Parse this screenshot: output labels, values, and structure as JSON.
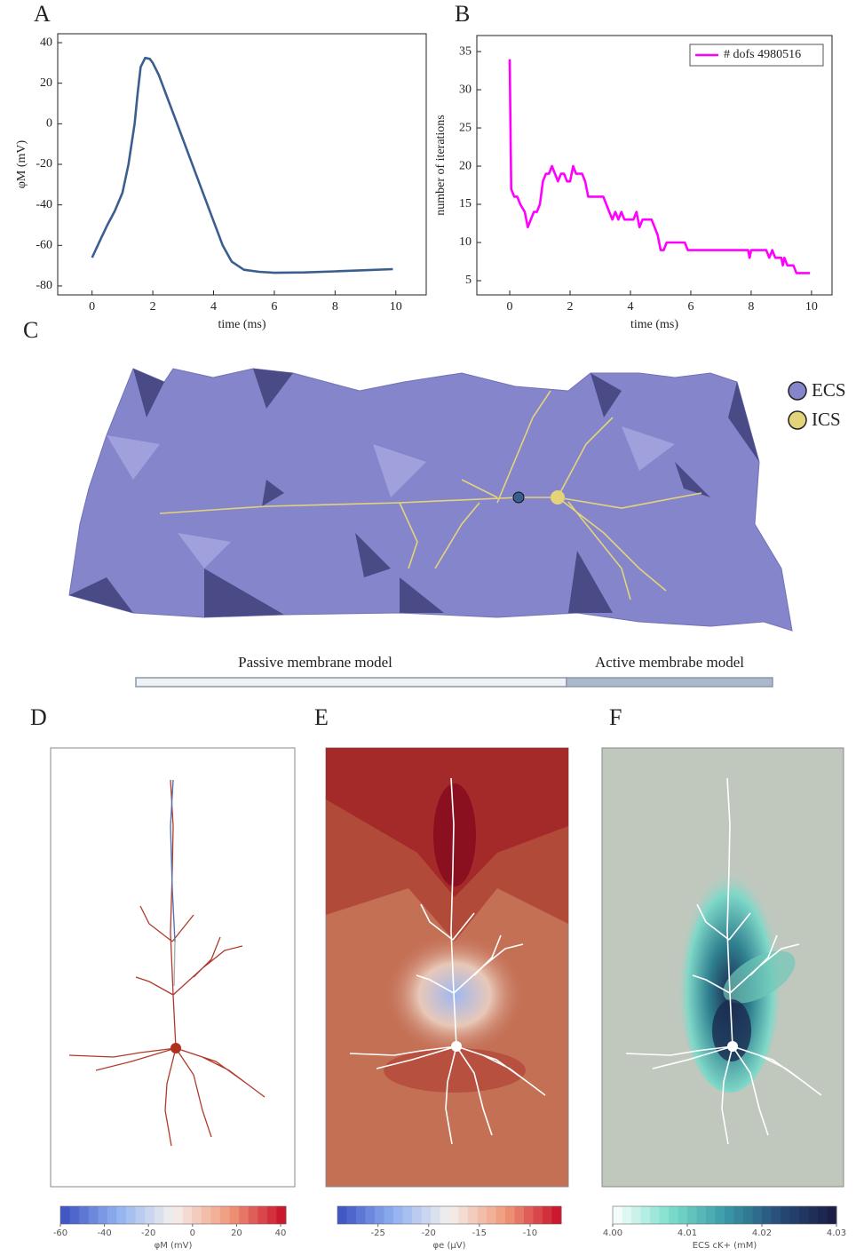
{
  "panel_labels": [
    "A",
    "B",
    "C",
    "D",
    "E",
    "F"
  ],
  "mesh": {
    "legend": [
      {
        "name": "ECS",
        "color": "#8585cc"
      },
      {
        "name": "ICS",
        "color": "#e3d47a"
      }
    ],
    "models": [
      "Passive membrane model",
      "Active membrabe model"
    ]
  },
  "chart_data": [
    {
      "type": "line",
      "xlabel": "time (ms)",
      "ylabel": "φM (mV)",
      "color": "#3a5f8f",
      "x": [
        0,
        0.25,
        0.5,
        0.75,
        1,
        1.2,
        1.4,
        1.5,
        1.6,
        1.75,
        1.9,
        2.0,
        2.2,
        2.5,
        2.8,
        3.0,
        3.5,
        4.0,
        4.3,
        4.6,
        5.0,
        5.5,
        6.0,
        7.0,
        8.0,
        9.0,
        9.9
      ],
      "values": [
        -66,
        -58,
        -50,
        -43,
        -34,
        -20,
        0,
        15,
        28,
        32.5,
        32,
        30,
        24,
        12,
        0,
        -8,
        -28,
        -48,
        -60,
        -68,
        -72,
        -73,
        -73.5,
        -73.3,
        -72.8,
        -72.2,
        -71.7
      ],
      "xlim": [
        -1.13,
        11.0
      ],
      "ylim": [
        -84.4,
        44.4
      ],
      "xticks": [
        0,
        2,
        4,
        6,
        8,
        10
      ],
      "yticks": [
        -80,
        -60,
        -40,
        -20,
        0,
        20,
        40
      ]
    },
    {
      "type": "line",
      "xlabel": "time (ms)",
      "ylabel": "number of iterations",
      "legend": "upper right",
      "x": [
        0,
        0.05,
        0.15,
        0.25,
        0.35,
        0.5,
        0.6,
        0.7,
        0.8,
        0.9,
        1.0,
        1.1,
        1.2,
        1.3,
        1.4,
        1.5,
        1.6,
        1.7,
        1.8,
        1.9,
        2.0,
        2.1,
        2.2,
        2.4,
        2.5,
        2.6,
        3.1,
        3.2,
        3.3,
        3.4,
        3.5,
        3.6,
        3.7,
        3.8,
        4.1,
        4.2,
        4.3,
        4.4,
        4.7,
        4.8,
        4.9,
        5.0,
        5.1,
        5.2,
        5.8,
        5.9,
        7.9,
        7.95,
        8.0,
        8.5,
        8.6,
        8.7,
        8.8,
        9.0,
        9.05,
        9.1,
        9.2,
        9.4,
        9.5,
        9.95
      ],
      "series": [
        {
          "name": "# dofs 4980516",
          "color": "#ff00ff",
          "values": [
            34,
            17,
            16,
            16,
            15,
            14,
            12,
            13,
            14,
            14,
            15,
            18,
            19,
            19,
            20,
            19,
            18,
            19,
            19,
            18,
            18,
            20,
            19,
            19,
            18,
            16,
            16,
            15,
            14,
            13,
            14,
            13,
            14,
            13,
            13,
            14,
            12,
            13,
            13,
            12,
            11,
            9,
            9,
            10,
            10,
            9,
            9,
            8,
            9,
            9,
            8,
            9,
            8,
            8,
            7,
            8,
            7,
            7,
            6,
            6
          ]
        }
      ],
      "xlim": [
        -1.09,
        10.68
      ],
      "ylim": [
        3.14,
        37.1
      ],
      "xticks": [
        0,
        2,
        4,
        6,
        8,
        10
      ],
      "yticks": [
        5,
        10,
        15,
        20,
        25,
        30,
        35
      ]
    },
    {
      "type": "colorbar",
      "label": "φM (mV)",
      "colors": [
        "#3a4fc0",
        "#8fb0f0",
        "#f4f0ee",
        "#f09a7a",
        "#c80c28"
      ],
      "lim": [
        -60,
        42.4
      ],
      "ticks": [
        -60,
        -40,
        -20,
        0,
        20,
        40
      ]
    },
    {
      "type": "colorbar",
      "label": "φe (μV)",
      "colors": [
        "#3a4fc0",
        "#8fb0f0",
        "#f4f0ee",
        "#f09a7a",
        "#c80c28"
      ],
      "lim": [
        -29.0,
        -6.93
      ],
      "ticks": [
        -25,
        -20,
        -15,
        -10
      ]
    },
    {
      "type": "colorbar",
      "label": "ECS cK+ (mM)",
      "colors": [
        "#ffffff",
        "#7fe0cc",
        "#3a9aa8",
        "#264a78",
        "#1a1a40"
      ],
      "lim": [
        4.0,
        4.03
      ],
      "ticks": [
        {
          "value": 4.0,
          "label": "4.00"
        },
        4.01,
        4.02,
        4.03
      ]
    }
  ]
}
